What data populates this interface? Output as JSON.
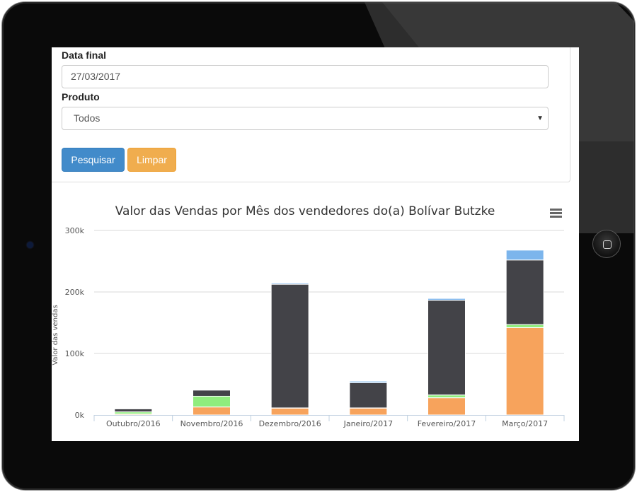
{
  "form": {
    "end_date_label": "Data final",
    "end_date_value": "27/03/2017",
    "product_label": "Produto",
    "product_value": "Todos",
    "search_button": "Pesquisar",
    "clear_button": "Limpar"
  },
  "chart_data": {
    "type": "bar",
    "stacked": true,
    "title": "Valor das Vendas por Mês dos vendedores do(a) Bolívar Butzke",
    "xlabel": "",
    "ylabel": "Valor das vendas",
    "ylim": [
      0,
      300000
    ],
    "yticks": [
      "0k",
      "100k",
      "200k",
      "300k"
    ],
    "grid": true,
    "categories": [
      "Outubro/2016",
      "Novembro/2016",
      "Dezembro/2016",
      "Janeiro/2017",
      "Fevereiro/2017",
      "Março/2017"
    ],
    "series": [
      {
        "color": "#f7a35c",
        "values": [
          1500,
          13000,
          11000,
          11000,
          28000,
          142000
        ]
      },
      {
        "color": "#90ed7d",
        "values": [
          3500,
          17500,
          500,
          500,
          4500,
          5000
        ]
      },
      {
        "color": "#434348",
        "values": [
          5000,
          10000,
          201000,
          41000,
          154000,
          105000
        ]
      },
      {
        "color": "#7cb5ec",
        "values": [
          500,
          500,
          2000,
          2500,
          3000,
          16000
        ]
      }
    ]
  },
  "icons": {
    "chart_menu": "menu-icon"
  }
}
